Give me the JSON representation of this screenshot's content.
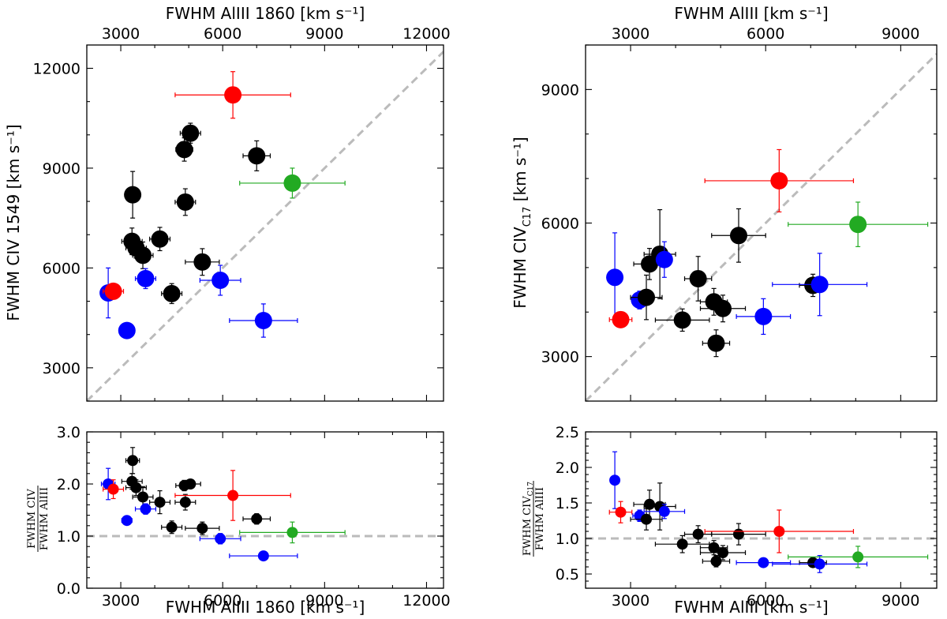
{
  "chart_data": [
    {
      "id": "top-left",
      "type": "scatter",
      "xlabel_top": "FWHM AlIII 1860 [km s⁻¹]",
      "ylabel": "FWHM CIV 1549 [km s⁻¹]",
      "xlim": [
        2000,
        12500
      ],
      "ylim": [
        2000,
        12700
      ],
      "xticks": [
        3000,
        6000,
        9000,
        12000
      ],
      "yticks": [
        3000,
        6000,
        9000,
        12000
      ],
      "reference_line": "y = x",
      "points": [
        {
          "x": 2630,
          "y": 5250,
          "xerr": 200,
          "yerr": 750,
          "color": "blue",
          "big": true
        },
        {
          "x": 2780,
          "y": 5300,
          "xerr": 300,
          "yerr": 150,
          "color": "red",
          "big": true
        },
        {
          "x": 3180,
          "y": 4120,
          "xerr": 150,
          "yerr": 150,
          "color": "blue",
          "big": true
        },
        {
          "x": 3350,
          "y": 8200,
          "xerr": 200,
          "yerr": 700,
          "color": "black",
          "big": true
        },
        {
          "x": 3330,
          "y": 6800,
          "xerr": 300,
          "yerr": 400,
          "color": "black",
          "big": true
        },
        {
          "x": 3450,
          "y": 6600,
          "xerr": 300,
          "yerr": 300,
          "color": "black",
          "big": true
        },
        {
          "x": 3650,
          "y": 6380,
          "xerr": 300,
          "yerr": 400,
          "color": "black",
          "big": true
        },
        {
          "x": 3730,
          "y": 5680,
          "xerr": 300,
          "yerr": 300,
          "color": "blue",
          "big": true
        },
        {
          "x": 4150,
          "y": 6870,
          "xerr": 300,
          "yerr": 350,
          "color": "black",
          "big": true
        },
        {
          "x": 4500,
          "y": 5230,
          "xerr": 300,
          "yerr": 300,
          "color": "black",
          "big": true
        },
        {
          "x": 4870,
          "y": 9560,
          "xerr": 250,
          "yerr": 350,
          "color": "black",
          "big": true
        },
        {
          "x": 4900,
          "y": 7980,
          "xerr": 300,
          "yerr": 400,
          "color": "black",
          "big": true
        },
        {
          "x": 5050,
          "y": 10050,
          "xerr": 300,
          "yerr": 300,
          "color": "black",
          "big": true
        },
        {
          "x": 5400,
          "y": 6180,
          "xerr": 500,
          "yerr": 400,
          "color": "black",
          "big": true
        },
        {
          "x": 5930,
          "y": 5630,
          "xerr": 600,
          "yerr": 450,
          "color": "blue",
          "big": true
        },
        {
          "x": 7000,
          "y": 9370,
          "xerr": 400,
          "yerr": 450,
          "color": "black",
          "big": true
        },
        {
          "x": 7200,
          "y": 4420,
          "xerr": 1000,
          "yerr": 500,
          "color": "blue",
          "big": true
        },
        {
          "x": 8050,
          "y": 8550,
          "xerr": 1550,
          "yerr": 450,
          "color": "green",
          "big": true
        },
        {
          "x": 6300,
          "y": 11200,
          "xerr": 1700,
          "yerr": 700,
          "color": "red",
          "big": true
        }
      ]
    },
    {
      "id": "top-right",
      "type": "scatter",
      "xlabel_top": "FWHM AlIII  [km s⁻¹]",
      "ylabel": "FWHM CIV",
      "ylabel_sub": "C17",
      "ylabel_units": " [km s⁻¹]",
      "xlim": [
        2000,
        9800
      ],
      "ylim": [
        2000,
        10000
      ],
      "xticks": [
        3000,
        6000,
        9000
      ],
      "yticks": [
        3000,
        6000,
        9000
      ],
      "reference_line": "y = x",
      "points": [
        {
          "x": 2650,
          "y": 4780,
          "xerr": 100,
          "yerr": 1000,
          "color": "blue",
          "big": true
        },
        {
          "x": 2780,
          "y": 3830,
          "xerr": 250,
          "yerr": 100,
          "color": "red",
          "big": true
        },
        {
          "x": 3200,
          "y": 4270,
          "xerr": 150,
          "yerr": 200,
          "color": "blue",
          "big": true
        },
        {
          "x": 3350,
          "y": 4330,
          "xerr": 350,
          "yerr": 500,
          "color": "black",
          "big": true
        },
        {
          "x": 3420,
          "y": 5080,
          "xerr": 350,
          "yerr": 350,
          "color": "black",
          "big": true
        },
        {
          "x": 3650,
          "y": 5300,
          "xerr": 350,
          "yerr": 1000,
          "color": "black",
          "big": true
        },
        {
          "x": 3750,
          "y": 5180,
          "xerr": 150,
          "yerr": 400,
          "color": "blue",
          "big": true
        },
        {
          "x": 4150,
          "y": 3820,
          "xerr": 600,
          "yerr": 250,
          "color": "black",
          "big": true
        },
        {
          "x": 4500,
          "y": 4750,
          "xerr": 300,
          "yerr": 500,
          "color": "black",
          "big": true
        },
        {
          "x": 4850,
          "y": 4230,
          "xerr": 300,
          "yerr": 300,
          "color": "black",
          "big": true
        },
        {
          "x": 4900,
          "y": 3300,
          "xerr": 300,
          "yerr": 300,
          "color": "black",
          "big": true
        },
        {
          "x": 5050,
          "y": 4080,
          "xerr": 500,
          "yerr": 300,
          "color": "black",
          "big": true
        },
        {
          "x": 5400,
          "y": 5720,
          "xerr": 600,
          "yerr": 600,
          "color": "black",
          "big": true
        },
        {
          "x": 5950,
          "y": 3900,
          "xerr": 600,
          "yerr": 400,
          "color": "blue",
          "big": true
        },
        {
          "x": 7050,
          "y": 4600,
          "xerr": 300,
          "yerr": 250,
          "color": "black",
          "big": true
        },
        {
          "x": 7200,
          "y": 4620,
          "xerr": 1050,
          "yerr": 700,
          "color": "blue",
          "big": true
        },
        {
          "x": 8050,
          "y": 5970,
          "xerr": 1550,
          "yerr": 500,
          "color": "green",
          "big": true
        },
        {
          "x": 6300,
          "y": 6950,
          "xerr": 1650,
          "yerr": 700,
          "color": "red",
          "big": true
        }
      ]
    },
    {
      "id": "bottom-left",
      "type": "scatter",
      "xlabel": "FWHM AlIII 1860 [km s⁻¹]",
      "ylabel_num": "FWHM CIV",
      "ylabel_den": "FWHM AlIII",
      "xlim": [
        2000,
        12500
      ],
      "ylim": [
        0,
        3.0
      ],
      "xticks": [
        3000,
        6000,
        9000,
        12000
      ],
      "yticks": [
        0.0,
        1.0,
        2.0,
        3.0
      ],
      "reference_line": "y = 1",
      "points": [
        {
          "x": 2630,
          "y": 2.0,
          "xerr": 200,
          "yerr": 0.3,
          "color": "blue"
        },
        {
          "x": 2780,
          "y": 1.9,
          "xerr": 300,
          "yerr": 0.18,
          "color": "red"
        },
        {
          "x": 3180,
          "y": 1.3,
          "xerr": 150,
          "yerr": 0.08,
          "color": "blue"
        },
        {
          "x": 3350,
          "y": 2.45,
          "xerr": 200,
          "yerr": 0.25,
          "color": "black"
        },
        {
          "x": 3330,
          "y": 2.05,
          "xerr": 300,
          "yerr": 0.15,
          "color": "black"
        },
        {
          "x": 3450,
          "y": 1.93,
          "xerr": 300,
          "yerr": 0.15,
          "color": "black"
        },
        {
          "x": 3650,
          "y": 1.75,
          "xerr": 300,
          "yerr": 0.2,
          "color": "black"
        },
        {
          "x": 3730,
          "y": 1.52,
          "xerr": 300,
          "yerr": 0.1,
          "color": "blue"
        },
        {
          "x": 4150,
          "y": 1.65,
          "xerr": 300,
          "yerr": 0.22,
          "color": "black"
        },
        {
          "x": 4500,
          "y": 1.17,
          "xerr": 300,
          "yerr": 0.12,
          "color": "black"
        },
        {
          "x": 4870,
          "y": 1.97,
          "xerr": 250,
          "yerr": 0.1,
          "color": "black"
        },
        {
          "x": 4900,
          "y": 1.65,
          "xerr": 300,
          "yerr": 0.15,
          "color": "black"
        },
        {
          "x": 5050,
          "y": 2.0,
          "xerr": 300,
          "yerr": 0.08,
          "color": "black"
        },
        {
          "x": 5400,
          "y": 1.15,
          "xerr": 500,
          "yerr": 0.12,
          "color": "black"
        },
        {
          "x": 5930,
          "y": 0.95,
          "xerr": 600,
          "yerr": 0.1,
          "color": "blue"
        },
        {
          "x": 7000,
          "y": 1.33,
          "xerr": 400,
          "yerr": 0.1,
          "color": "black"
        },
        {
          "x": 7200,
          "y": 0.62,
          "xerr": 1000,
          "yerr": 0.06,
          "color": "blue"
        },
        {
          "x": 8050,
          "y": 1.07,
          "xerr": 1550,
          "yerr": 0.2,
          "color": "green"
        },
        {
          "x": 6300,
          "y": 1.78,
          "xerr": 1700,
          "yerr": 0.48,
          "color": "red"
        }
      ]
    },
    {
      "id": "bottom-right",
      "type": "scatter",
      "xlabel": "FWHM AlIII  [km s⁻¹]",
      "ylabel_num": "FWHM CIV",
      "ylabel_num_sub": "C17",
      "ylabel_den": "FWHM AlIII",
      "xlim": [
        2000,
        9800
      ],
      "ylim": [
        0.3,
        2.5
      ],
      "xticks": [
        3000,
        6000,
        9000
      ],
      "yticks": [
        0.5,
        1.0,
        1.5,
        2.0,
        2.5
      ],
      "reference_line": "y = 1",
      "points": [
        {
          "x": 2650,
          "y": 1.82,
          "xerr": 100,
          "yerr": 0.4,
          "color": "blue"
        },
        {
          "x": 2780,
          "y": 1.37,
          "xerr": 250,
          "yerr": 0.15,
          "color": "red"
        },
        {
          "x": 3200,
          "y": 1.32,
          "xerr": 150,
          "yerr": 0.08,
          "color": "blue"
        },
        {
          "x": 3350,
          "y": 1.27,
          "xerr": 350,
          "yerr": 0.15,
          "color": "black"
        },
        {
          "x": 3420,
          "y": 1.48,
          "xerr": 350,
          "yerr": 0.2,
          "color": "black"
        },
        {
          "x": 3650,
          "y": 1.45,
          "xerr": 350,
          "yerr": 0.33,
          "color": "black"
        },
        {
          "x": 3750,
          "y": 1.38,
          "xerr": 450,
          "yerr": 0.1,
          "color": "blue"
        },
        {
          "x": 4150,
          "y": 0.92,
          "xerr": 600,
          "yerr": 0.12,
          "color": "black"
        },
        {
          "x": 4500,
          "y": 1.06,
          "xerr": 300,
          "yerr": 0.12,
          "color": "black"
        },
        {
          "x": 4850,
          "y": 0.87,
          "xerr": 300,
          "yerr": 0.1,
          "color": "black"
        },
        {
          "x": 4900,
          "y": 0.68,
          "xerr": 300,
          "yerr": 0.08,
          "color": "black"
        },
        {
          "x": 5050,
          "y": 0.8,
          "xerr": 500,
          "yerr": 0.1,
          "color": "black"
        },
        {
          "x": 5400,
          "y": 1.06,
          "xerr": 600,
          "yerr": 0.15,
          "color": "black"
        },
        {
          "x": 5950,
          "y": 0.66,
          "xerr": 600,
          "yerr": 0.06,
          "color": "blue"
        },
        {
          "x": 7050,
          "y": 0.66,
          "xerr": 300,
          "yerr": 0.05,
          "color": "black"
        },
        {
          "x": 7200,
          "y": 0.64,
          "xerr": 1050,
          "yerr": 0.12,
          "color": "blue"
        },
        {
          "x": 8050,
          "y": 0.74,
          "xerr": 1550,
          "yerr": 0.15,
          "color": "green"
        },
        {
          "x": 6300,
          "y": 1.1,
          "xerr": 1650,
          "yerr": 0.3,
          "color": "red"
        }
      ]
    }
  ],
  "colors": {
    "black": "#000000",
    "blue": "#0000ff",
    "red": "#ff0000",
    "green": "#22aa22",
    "reference": "#bbbbbb"
  }
}
